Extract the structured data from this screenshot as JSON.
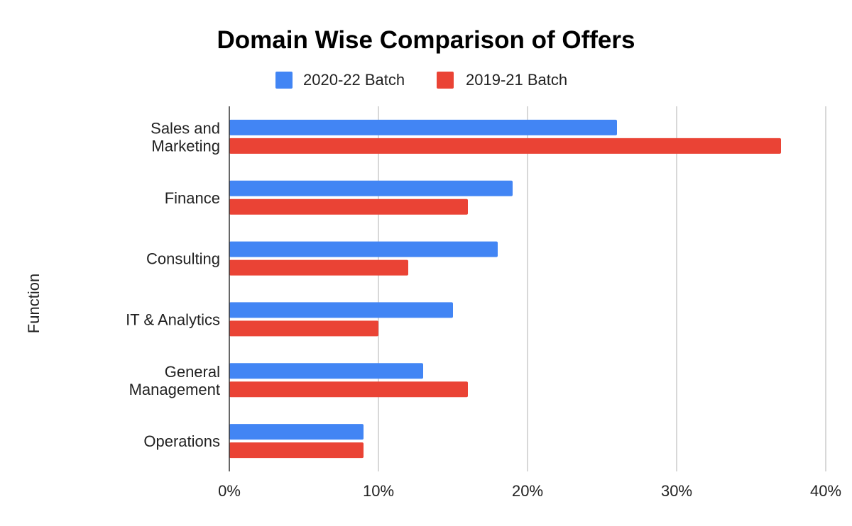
{
  "chart_data": {
    "type": "bar",
    "orientation": "horizontal",
    "title": "Domain Wise Comparison of Offers",
    "xlabel": "",
    "ylabel": "Function",
    "categories": [
      [
        "Sales and",
        "Marketing"
      ],
      [
        "Finance"
      ],
      [
        "Consulting"
      ],
      [
        "IT & Analytics"
      ],
      [
        "General",
        "Management"
      ],
      [
        "Operations"
      ]
    ],
    "series": [
      {
        "name": "2020-22 Batch",
        "color": "#4285f4",
        "values": [
          26,
          19,
          18,
          15,
          13,
          9
        ]
      },
      {
        "name": "2019-21 Batch",
        "color": "#ea4335",
        "values": [
          37,
          16,
          12,
          10,
          16,
          9
        ]
      }
    ],
    "xlim": [
      0,
      40
    ],
    "xticks": [
      0,
      10,
      20,
      30,
      40
    ],
    "xtick_labels": [
      "0%",
      "10%",
      "20%",
      "30%",
      "40%"
    ],
    "grid": true,
    "legend_position": "top-center"
  }
}
